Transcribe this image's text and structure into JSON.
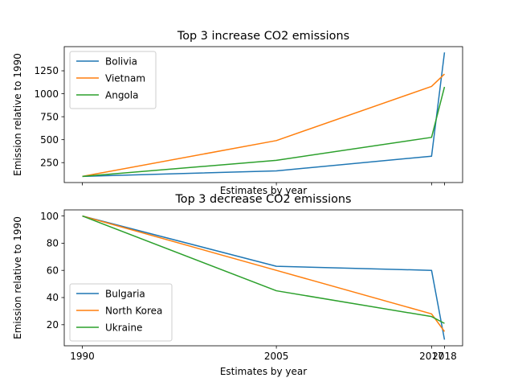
{
  "chart_data": [
    {
      "type": "line",
      "title": "Top 3 increase CO2 emissions",
      "xlabel": "Estimates by year",
      "ylabel": "Emission relative to 1990",
      "x": [
        1990,
        2005,
        2017,
        2018
      ],
      "xticks": [
        1990,
        2005,
        2017,
        2018
      ],
      "show_xtick_labels": false,
      "xlim": [
        1988.6,
        2019.4
      ],
      "ylim": [
        33,
        1513
      ],
      "yticks": [
        250,
        500,
        750,
        1000,
        1250
      ],
      "legend_position": "upper-left",
      "grid": false,
      "series": [
        {
          "name": "Bolivia",
          "color": "#1f77b4",
          "values": [
            100,
            160,
            320,
            1450
          ]
        },
        {
          "name": "Vietnam",
          "color": "#ff7f0e",
          "values": [
            100,
            490,
            1080,
            1215
          ]
        },
        {
          "name": "Angola",
          "color": "#2ca02c",
          "values": [
            100,
            275,
            525,
            1075
          ]
        }
      ]
    },
    {
      "type": "line",
      "title": "Top 3 decrease CO2 emissions",
      "xlabel": "Estimates by year",
      "ylabel": "Emission relative to 1990",
      "x": [
        1990,
        2005,
        2017,
        2018
      ],
      "xticks": [
        1990,
        2005,
        2017,
        2018
      ],
      "show_xtick_labels": true,
      "xlim": [
        1988.6,
        2019.4
      ],
      "ylim": [
        4.5,
        104.5
      ],
      "yticks": [
        20,
        40,
        60,
        80,
        100
      ],
      "legend_position": "lower-left",
      "grid": false,
      "series": [
        {
          "name": "Bulgaria",
          "color": "#1f77b4",
          "values": [
            100,
            63,
            60,
            9
          ]
        },
        {
          "name": "North Korea",
          "color": "#ff7f0e",
          "values": [
            100,
            60,
            28,
            15
          ]
        },
        {
          "name": "Ukraine",
          "color": "#2ca02c",
          "values": [
            100,
            45,
            26,
            21
          ]
        }
      ]
    }
  ]
}
